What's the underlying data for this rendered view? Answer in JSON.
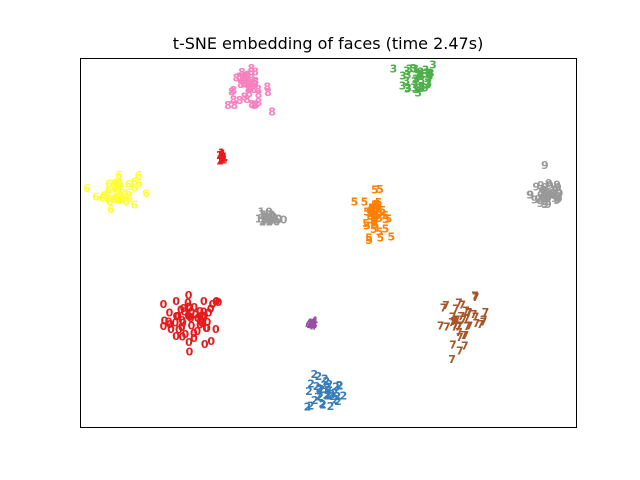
{
  "chart_data": {
    "type": "scatter",
    "title": "t-SNE embedding of faces (time 2.47s)",
    "xlabel": "",
    "ylabel": "",
    "xlim": [
      0,
      1
    ],
    "ylim": [
      0,
      1
    ],
    "grid": false,
    "legend": "none",
    "series": [
      {
        "label": "0",
        "color": "#e41a1c",
        "center": [
          0.23,
          0.29
        ],
        "spread": [
          0.05,
          0.055
        ],
        "count": 60
      },
      {
        "label": "1",
        "color": "#e41a1c",
        "center": [
          0.285,
          0.73
        ],
        "spread": [
          0.006,
          0.012
        ],
        "count": 12
      },
      {
        "label": "10",
        "color": "#999999",
        "center": [
          0.38,
          0.565
        ],
        "spread": [
          0.018,
          0.012
        ],
        "count": 14
      },
      {
        "label": "2",
        "color": "#377eb8",
        "center": [
          0.495,
          0.09
        ],
        "spread": [
          0.032,
          0.04
        ],
        "count": 35
      },
      {
        "label": "3",
        "color": "#4daf4a",
        "center": [
          0.68,
          0.945
        ],
        "spread": [
          0.035,
          0.04
        ],
        "count": 38
      },
      {
        "label": "4",
        "color": "#984ea3",
        "center": [
          0.468,
          0.28
        ],
        "spread": [
          0.005,
          0.008
        ],
        "count": 10
      },
      {
        "label": "5",
        "color": "#ff7f00",
        "center": [
          0.595,
          0.575
        ],
        "spread": [
          0.02,
          0.05
        ],
        "count": 42
      },
      {
        "label": "6",
        "color": "#ffff33",
        "center": [
          0.075,
          0.64
        ],
        "spread": [
          0.035,
          0.04
        ],
        "count": 40
      },
      {
        "label": "7",
        "color": "#a65628",
        "center": [
          0.775,
          0.285
        ],
        "spread": [
          0.04,
          0.05
        ],
        "count": 40
      },
      {
        "label": "8",
        "color": "#f781bf",
        "center": [
          0.34,
          0.915
        ],
        "spread": [
          0.035,
          0.04
        ],
        "count": 42
      },
      {
        "label": "9",
        "color": "#999999",
        "center": [
          0.945,
          0.63
        ],
        "spread": [
          0.03,
          0.04
        ],
        "count": 42
      }
    ]
  }
}
